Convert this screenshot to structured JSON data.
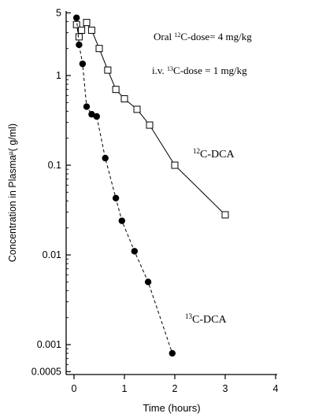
{
  "chart_data": {
    "type": "line",
    "x_axis": {
      "label": "Time (hours)",
      "range": [
        0,
        4
      ],
      "ticks": [
        0,
        1,
        2,
        3,
        4
      ],
      "tick_labels": [
        "0",
        "1",
        "2",
        "3",
        "4"
      ]
    },
    "y_axis": {
      "label": "Concentration in Plasma",
      "label_superscript": "µ",
      "label_unit": "(  g/ml)",
      "scale": "log",
      "range": [
        0.0005,
        5
      ],
      "ticks": [
        0.0005,
        0.001,
        0.01,
        0.1,
        1,
        5
      ],
      "tick_labels": [
        "0.0005",
        "0.001",
        "0.01",
        "0.1",
        "1",
        "5"
      ]
    },
    "annotations": {
      "oral_dose": {
        "prefix": "Oral ",
        "sup": "12",
        "suffix": "C-dose= 4 mg/kg"
      },
      "iv_dose": {
        "prefix": "i.v. ",
        "sup": "13",
        "suffix": "C-dose = 1 mg/kg"
      }
    },
    "series": [
      {
        "name": "C-DCA",
        "sup": "12",
        "marker": "open-square",
        "line_style": "solid",
        "x": [
          0.05,
          0.1,
          0.15,
          0.25,
          0.35,
          0.5,
          0.67,
          0.83,
          1.0,
          1.25,
          1.5,
          2.0,
          3.0
        ],
        "y": [
          3.7,
          2.7,
          3.2,
          3.9,
          3.2,
          2.0,
          1.15,
          0.7,
          0.55,
          0.42,
          0.28,
          0.1,
          0.028
        ]
      },
      {
        "name": "C-DCA",
        "sup": "13",
        "marker": "filled-circle",
        "line_style": "dashed",
        "x": [
          0.05,
          0.1,
          0.17,
          0.25,
          0.35,
          0.45,
          0.62,
          0.83,
          0.95,
          1.2,
          1.47,
          1.95
        ],
        "y": [
          4.4,
          2.2,
          1.35,
          0.45,
          0.37,
          0.35,
          0.12,
          0.043,
          0.024,
          0.011,
          0.005,
          0.0008
        ]
      }
    ]
  }
}
